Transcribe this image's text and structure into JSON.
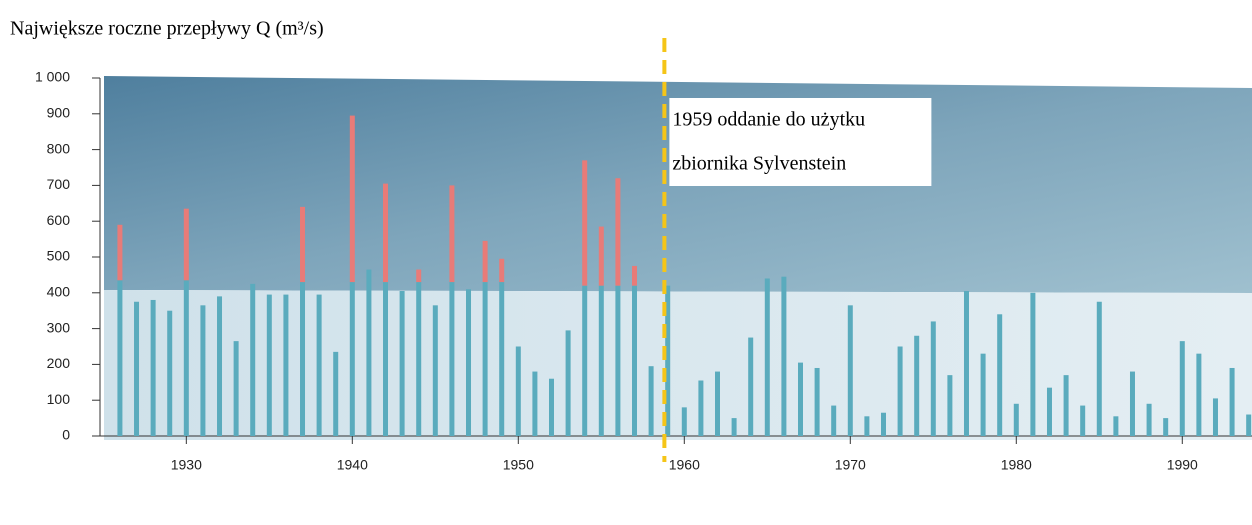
{
  "chart_data": {
    "type": "bar",
    "title": "Największe roczne przepływy Q (m³/s)",
    "x": [
      1926,
      1927,
      1928,
      1929,
      1930,
      1931,
      1932,
      1933,
      1934,
      1935,
      1936,
      1937,
      1938,
      1939,
      1940,
      1941,
      1942,
      1943,
      1944,
      1945,
      1946,
      1947,
      1948,
      1949,
      1950,
      1951,
      1952,
      1953,
      1954,
      1955,
      1956,
      1957,
      1958,
      1959,
      1960,
      1961,
      1962,
      1963,
      1964,
      1965,
      1966,
      1967,
      1968,
      1969,
      1970,
      1971,
      1972,
      1973,
      1974,
      1975,
      1976,
      1977,
      1978,
      1979,
      1980,
      1981,
      1982,
      1983,
      1984,
      1985,
      1986,
      1987,
      1988,
      1989,
      1990,
      1991,
      1992,
      1993,
      1994
    ],
    "series": [
      {
        "color": "#5aabbd",
        "values": [
          435,
          375,
          380,
          350,
          435,
          365,
          390,
          265,
          425,
          395,
          395,
          430,
          395,
          235,
          430,
          465,
          430,
          405,
          430,
          365,
          430,
          410,
          430,
          430,
          250,
          180,
          160,
          295,
          420,
          420,
          420,
          420,
          195,
          420,
          80,
          155,
          180,
          50,
          275,
          440,
          445,
          205,
          190,
          85,
          365,
          55,
          65,
          250,
          280,
          320,
          170,
          405,
          230,
          340,
          90,
          400,
          135,
          170,
          85,
          375,
          55,
          180,
          90,
          50,
          265,
          230,
          105,
          190,
          60
        ]
      },
      {
        "color": "#e87b78",
        "values": [
          155,
          null,
          null,
          null,
          200,
          null,
          null,
          null,
          null,
          null,
          null,
          210,
          null,
          null,
          465,
          null,
          275,
          null,
          35,
          null,
          270,
          null,
          115,
          65,
          null,
          null,
          null,
          null,
          350,
          165,
          300,
          55,
          null,
          null,
          null,
          null,
          null,
          null,
          null,
          null,
          null,
          null,
          null,
          null,
          null,
          null,
          null,
          null,
          null,
          null,
          null,
          null,
          null,
          null,
          null,
          null,
          null,
          null,
          null,
          null,
          null,
          null,
          null,
          null,
          null,
          null,
          null,
          null,
          null
        ]
      }
    ],
    "xlim": [
      1924.8,
      1994.2
    ],
    "xticks": [
      1930,
      1940,
      1950,
      1960,
      1970,
      1980,
      1990
    ],
    "ylim": [
      0,
      1000
    ],
    "yticks": [
      0,
      100,
      200,
      300,
      400,
      500,
      600,
      700,
      800,
      900,
      {
        "value": 1000,
        "label": "1 000"
      }
    ],
    "annotation": {
      "x": 1958.8,
      "color": "#f5c518",
      "lines": [
        "1959 oddanie do użytku",
        "zbiornika Sylvenstein"
      ]
    }
  }
}
